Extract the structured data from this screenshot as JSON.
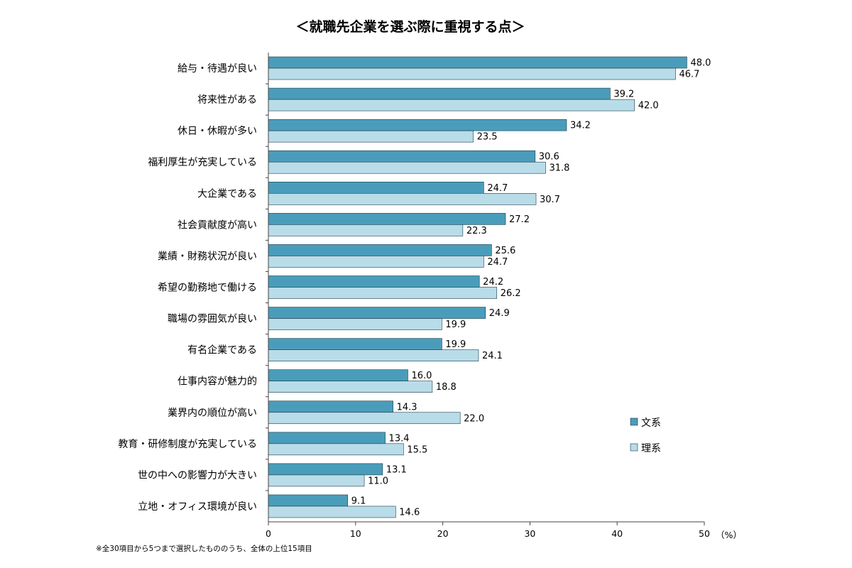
{
  "chart_data": {
    "type": "bar",
    "orientation": "horizontal",
    "title": "＜就職先企業を選ぶ際に重視する点＞",
    "unit": "（%）",
    "footnote": "※全30項目から5つまで選択したもののうち、全体の上位15項目",
    "xlim": [
      0,
      50
    ],
    "xticks": [
      "0",
      "10",
      "20",
      "30",
      "40",
      "50"
    ],
    "grid": false,
    "legend_position": "right",
    "categories": [
      "給与・待遇が良い",
      "将来性がある",
      "休日・休暇が多い",
      "福利厚生が充実している",
      "大企業である",
      "社会貢献度が高い",
      "業績・財務状況が良い",
      "希望の勤務地で働ける",
      "職場の雰囲気が良い",
      "有名企業である",
      "仕事内容が魅力的",
      "業界内の順位が高い",
      "教育・研修制度が充実している",
      "世の中への影響力が大きい",
      "立地・オフィス環境が良い"
    ],
    "series": [
      {
        "name": "文系",
        "color": "#4a9dba",
        "values": [
          48.0,
          39.2,
          34.2,
          30.6,
          24.7,
          27.2,
          25.6,
          24.2,
          24.9,
          19.9,
          16.0,
          14.3,
          13.4,
          13.1,
          9.1
        ],
        "labels": [
          "48.0",
          "39.2",
          "34.2",
          "30.6",
          "24.7",
          "27.2",
          "25.6",
          "24.2",
          "24.9",
          "19.9",
          "16.0",
          "14.3",
          "13.4",
          "13.1",
          "9.1"
        ]
      },
      {
        "name": "理系",
        "color": "#b9dce9",
        "values": [
          46.7,
          42.0,
          23.5,
          31.8,
          30.7,
          22.3,
          24.7,
          26.2,
          19.9,
          24.1,
          18.8,
          22.0,
          15.5,
          11.0,
          14.6
        ],
        "labels": [
          "46.7",
          "42.0",
          "23.5",
          "31.8",
          "30.7",
          "22.3",
          "24.7",
          "26.2",
          "19.9",
          "24.1",
          "18.8",
          "22.0",
          "15.5",
          "11.0",
          "14.6"
        ]
      }
    ]
  }
}
